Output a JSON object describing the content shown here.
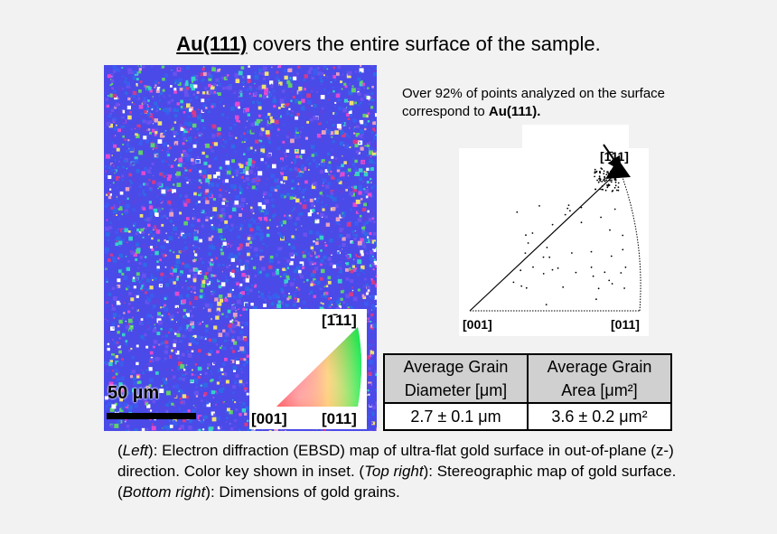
{
  "title": {
    "highlight": "Au(111)",
    "rest": " covers the entire surface of the sample."
  },
  "ebsd_map": {
    "scale_label": "50 µm",
    "colors": [
      "#4a4ae8",
      "#3b5cf0",
      "#5a44e0",
      "#6a52ee",
      "#2f6ae6",
      "#35d0c8",
      "#5fd06a",
      "#e24ad0",
      "#e8a0c0",
      "#f0e070",
      "#ffffff",
      "#d23a8a"
    ],
    "inset": {
      "top_label": "[1̄11]",
      "left_label": "[001]",
      "right_label": "[011]"
    }
  },
  "note": {
    "text": "Over 92% of points analyzed on the surface correspond to ",
    "bold": "Au(111)."
  },
  "stereographic": {
    "top_label": "[1̄11]",
    "left_label": "[001]",
    "right_label": "[011]"
  },
  "grain_table": {
    "headers": [
      {
        "line1": "Average Grain",
        "line2": "Diameter [μm]"
      },
      {
        "line1": "Average Grain",
        "line2": "Area [μm²]"
      }
    ],
    "values": [
      "2.7 ± 0.1 μm",
      "3.6 ± 0.2 μm²"
    ]
  },
  "caption": {
    "p1": "(",
    "left_word": "Left",
    "p2": "): Electron diffraction (EBSD) map of ultra-flat gold surface in out-of-plane (z-) direction. Color key shown in inset. (",
    "topright_word": "Top right",
    "p3": "): Stereographic map of gold surface. (",
    "bottomright_word": "Bottom right",
    "p4": "): Dimensions of gold grains."
  }
}
